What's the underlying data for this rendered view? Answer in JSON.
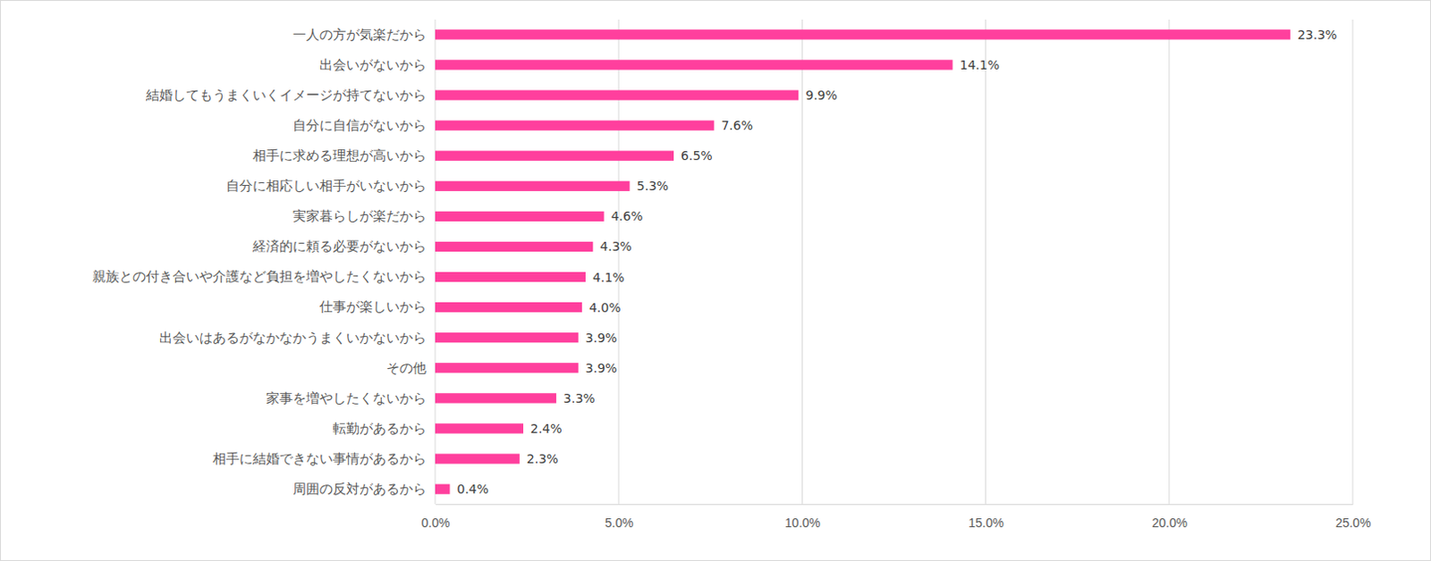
{
  "chart_data": {
    "type": "bar",
    "orientation": "horizontal",
    "categories": [
      "一人の方が気楽だから",
      "出会いがないから",
      "結婚してもうまくいくイメージが持てないから",
      "自分に自信がないから",
      "相手に求める理想が高いから",
      "自分に相応しい相手がいないから",
      "実家暮らしが楽だから",
      "経済的に頼る必要がないから",
      "親族との付き合いや介護など負担を増やしたくないから",
      "仕事が楽しいから",
      "出会いはあるがなかなかうまくいかないから",
      "その他",
      "家事を増やしたくないから",
      "転勤があるから",
      "相手に結婚できない事情があるから",
      "周囲の反対があるから"
    ],
    "values": [
      23.3,
      14.1,
      9.9,
      7.6,
      6.5,
      5.3,
      4.6,
      4.3,
      4.1,
      4.0,
      3.9,
      3.9,
      3.3,
      2.4,
      2.3,
      0.4
    ],
    "value_labels": [
      "23.3%",
      "14.1%",
      "9.9%",
      "7.6%",
      "6.5%",
      "5.3%",
      "4.6%",
      "4.3%",
      "4.1%",
      "4.0%",
      "3.9%",
      "3.9%",
      "3.3%",
      "2.4%",
      "2.3%",
      "0.4%"
    ],
    "color": "#ff3f9d",
    "xlim": [
      0,
      25
    ],
    "xticks": [
      {
        "value": 0,
        "label": "0.0%"
      },
      {
        "value": 5,
        "label": "5.0%"
      },
      {
        "value": 10,
        "label": "10.0%"
      },
      {
        "value": 15,
        "label": "15.0%"
      },
      {
        "value": 20,
        "label": "20.0%"
      },
      {
        "value": 25,
        "label": "25.0%"
      }
    ],
    "grid": true,
    "data_labels": true
  }
}
